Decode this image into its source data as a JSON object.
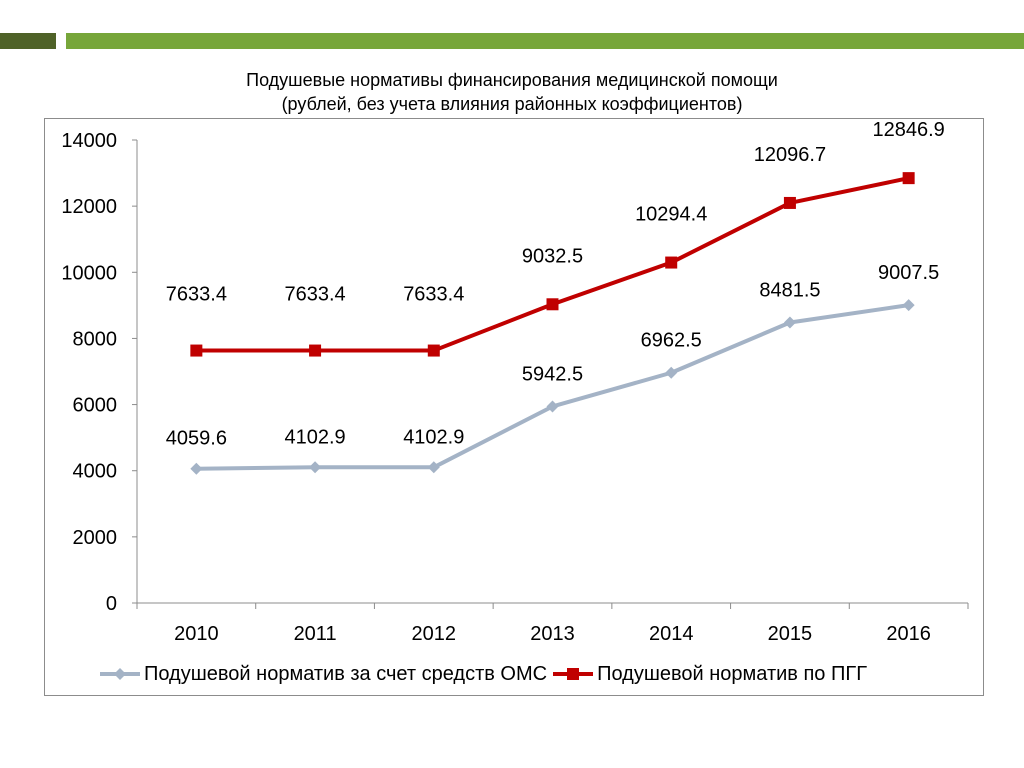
{
  "title_line1": "Подушевые нормативы финансирования медицинской помощи",
  "title_line2": "(рублей, без учета влияния районных коэффициентов)",
  "chart_data": {
    "type": "line",
    "categories": [
      "2010",
      "2011",
      "2012",
      "2013",
      "2014",
      "2015",
      "2016"
    ],
    "ylim": [
      0,
      14000
    ],
    "yticks": [
      0,
      2000,
      4000,
      6000,
      8000,
      10000,
      12000,
      14000
    ],
    "grid": false,
    "legend_position": "bottom",
    "series": [
      {
        "name": "Подушевой норматив за счет средств ОМС",
        "values": [
          4059.6,
          4102.9,
          4102.9,
          5942.5,
          6962.5,
          8481.5,
          9007.5
        ],
        "labels": [
          "4059.6",
          "4102.9",
          "4102.9",
          "5942.5",
          "6962.5",
          "8481.5",
          "9007.5"
        ],
        "color": "#a4b3c6",
        "marker": "diamond"
      },
      {
        "name": "Подушевой норматив по ПГГ",
        "values": [
          7633.4,
          7633.4,
          7633.4,
          9032.5,
          10294.4,
          12096.7,
          12846.9
        ],
        "labels": [
          "7633.4",
          "7633.4",
          "7633.4",
          "9032.5",
          "10294.4",
          "12096.7",
          "12846.9"
        ],
        "color": "#c00000",
        "marker": "square"
      }
    ]
  },
  "colors": {
    "header_dark": "#4f6228",
    "header_light": "#77a63a",
    "axis": "#8c8c8c"
  }
}
